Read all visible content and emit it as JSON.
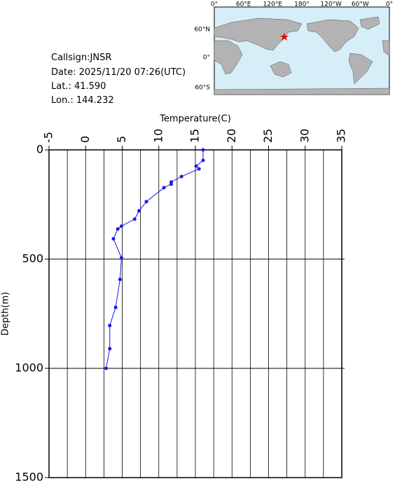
{
  "info": {
    "callsign": "Callsign:JNSR",
    "date": "Date:  2025/11/20 07:26(UTC)",
    "lat": "Lat.:  41.590",
    "lon": "Lon.:  144.232"
  },
  "map": {
    "top_labels": [
      "0°",
      "60°E",
      "120°E",
      "180°",
      "120°W",
      "60°W",
      "0°"
    ],
    "left_labels": [
      "60°N",
      "0°",
      "60°S"
    ]
  },
  "chart_data": {
    "type": "scatter",
    "xlabel": "Temperature(C)",
    "ylabel": "Depth(m)",
    "x": [
      16.05,
      16.05,
      15.1,
      15.5,
      13.1,
      11.7,
      11.7,
      10.7,
      8.3,
      7.3,
      6.7,
      4.9,
      4.4,
      3.8,
      4.9,
      4.7,
      4.1,
      3.3,
      3.3,
      2.8
    ],
    "values": [
      0,
      48,
      74,
      87,
      122,
      147,
      157,
      173,
      237,
      279,
      317,
      349,
      362,
      407,
      494,
      593,
      721,
      804,
      910,
      1000
    ],
    "color": "#1a1ae6",
    "xlim": [
      -5,
      35
    ],
    "xticks": [
      -5,
      0,
      5,
      10,
      15,
      20,
      25,
      30,
      35
    ],
    "xgrid": [
      -2.5,
      0,
      2.5,
      5,
      7.5,
      10,
      12.5,
      15,
      17.5,
      20,
      22.5,
      25,
      27.5,
      30,
      32.5
    ],
    "ylim": [
      0,
      1500
    ],
    "yticks": [
      0,
      500,
      1000,
      1500
    ],
    "ygrid": [
      500,
      1000
    ],
    "y_inverted": true
  }
}
